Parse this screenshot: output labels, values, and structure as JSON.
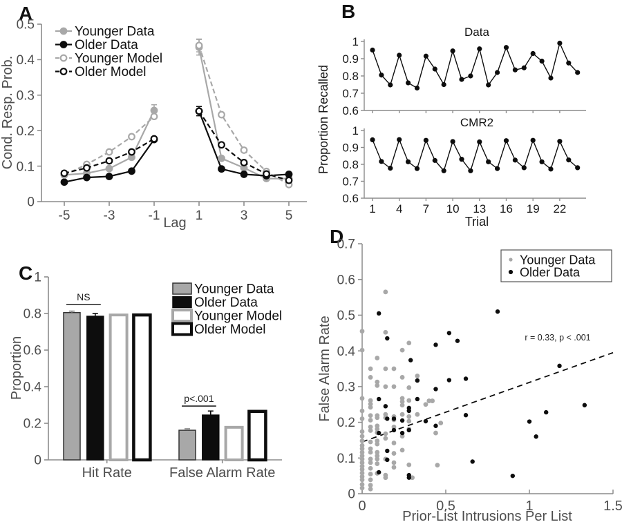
{
  "figure": {
    "panels": [
      {
        "label": "A"
      },
      {
        "label": "B"
      },
      {
        "label": "C"
      },
      {
        "label": "D"
      }
    ]
  },
  "colors": {
    "younger_gray": "#a8a8a8",
    "older_black": "#0d0d0d",
    "axis_gray": "#8c8c8c",
    "background": "#ffffff"
  },
  "chart_data": [
    {
      "panel": "A",
      "type": "line",
      "xlabel": "Lag",
      "ylabel": "Cond. Resp. Prob.",
      "x": [
        -5,
        -4,
        -3,
        -2,
        -1,
        1,
        2,
        3,
        4,
        5
      ],
      "xticks": [
        -5,
        -3,
        -1,
        1,
        3,
        5
      ],
      "ylim": [
        0,
        0.5
      ],
      "yticks": [
        0,
        0.1,
        0.2,
        0.3,
        0.4,
        0.5
      ],
      "axis_color": "#8c8c8c",
      "tick_color": "#4d4d4d",
      "legend_position": "top-left",
      "series": [
        {
          "name": "Younger Data",
          "color": "#a8a8a8",
          "dash": "solid",
          "marker": "filled",
          "values": [
            0.075,
            0.08,
            0.093,
            0.125,
            0.257,
            0.435,
            0.122,
            0.095,
            0.065,
            0.065
          ],
          "errors": [
            0,
            0,
            0,
            0,
            0.016,
            0.022,
            0,
            0,
            0,
            0
          ]
        },
        {
          "name": "Older Data",
          "color": "#0d0d0d",
          "dash": "solid",
          "marker": "filled",
          "values": [
            0.055,
            0.068,
            0.071,
            0.086,
            0.175,
            0.255,
            0.092,
            0.077,
            0.073,
            0.077
          ],
          "errors": [
            0,
            0,
            0,
            0,
            0,
            0.013,
            0,
            0,
            0,
            0
          ]
        },
        {
          "name": "Younger Model",
          "color": "#a8a8a8",
          "dash": "dashed",
          "marker": "open",
          "values": [
            0.075,
            0.105,
            0.14,
            0.183,
            0.24,
            0.44,
            0.245,
            0.145,
            0.085,
            0.048
          ],
          "errors": [
            0,
            0,
            0,
            0,
            0,
            0.018,
            0,
            0,
            0,
            0
          ]
        },
        {
          "name": "Older Model",
          "color": "#0d0d0d",
          "dash": "dashed",
          "marker": "open",
          "values": [
            0.08,
            0.095,
            0.115,
            0.14,
            0.177,
            0.255,
            0.16,
            0.11,
            0.078,
            0.06
          ],
          "errors": [
            0,
            0,
            0,
            0,
            0,
            0,
            0,
            0,
            0,
            0
          ]
        }
      ]
    },
    {
      "panel": "B",
      "type": "line",
      "xlabel": "Trial",
      "ylabel": "Proportion Recalled",
      "xticks": [
        1,
        4,
        7,
        10,
        13,
        16,
        19,
        22
      ],
      "ylim": [
        0.6,
        1
      ],
      "yticks": [
        0.6,
        0.7,
        0.8,
        0.9,
        1
      ],
      "axis_color": "#8c8c8c",
      "tick_color": "#1a1a1a",
      "series_color": "#0d0d0d",
      "subplots": [
        {
          "title": "Data",
          "values": [
            0.95,
            0.805,
            0.748,
            0.92,
            0.76,
            0.73,
            0.915,
            0.84,
            0.75,
            0.945,
            0.78,
            0.8,
            0.957,
            0.748,
            0.82,
            0.965,
            0.835,
            0.847,
            0.93,
            0.886,
            0.788,
            0.99,
            0.875,
            0.82
          ]
        },
        {
          "title": "CMR2",
          "values": [
            0.945,
            0.817,
            0.777,
            0.946,
            0.815,
            0.775,
            0.942,
            0.823,
            0.762,
            0.935,
            0.83,
            0.762,
            0.933,
            0.815,
            0.775,
            0.94,
            0.825,
            0.78,
            0.942,
            0.815,
            0.772,
            0.936,
            0.826,
            0.78
          ]
        }
      ]
    },
    {
      "panel": "C",
      "type": "bar",
      "ylabel": "Proportion",
      "categories": [
        "Hit Rate",
        "False Alarm Rate"
      ],
      "ylim": [
        0,
        1
      ],
      "yticks": [
        0,
        0.2,
        0.4,
        0.6,
        0.8,
        1
      ],
      "axis_color": "#8c8c8c",
      "tick_color": "#4d4d4d",
      "series": [
        {
          "name": "Younger Data",
          "fill": "#a8a8a8",
          "edge": "#333333",
          "edge_width": 1.5,
          "err_color": "#8a8a8a",
          "values": [
            0.805,
            0.162
          ],
          "errors": [
            0.008,
            0.008
          ]
        },
        {
          "name": "Older Data",
          "fill": "#0d0d0d",
          "edge": "#0d0d0d",
          "edge_width": 1.5,
          "err_color": "#0d0d0d",
          "values": [
            0.785,
            0.245
          ],
          "errors": [
            0.015,
            0.022
          ]
        },
        {
          "name": "Younger Model",
          "fill": "#ffffff",
          "edge": "#a8a8a8",
          "edge_width": 4,
          "err_color": "#8a8a8a",
          "values": [
            0.792,
            0.178
          ],
          "errors": [
            0,
            0
          ]
        },
        {
          "name": "Older Model",
          "fill": "#ffffff",
          "edge": "#0d0d0d",
          "edge_width": 4.5,
          "err_color": "#0d0d0d",
          "values": [
            0.792,
            0.265
          ],
          "errors": [
            0,
            0
          ]
        }
      ],
      "annotations": [
        {
          "text": "NS",
          "category": 0,
          "y": 0.85
        },
        {
          "text": "p<.001",
          "category": 1,
          "y": 0.294
        }
      ]
    },
    {
      "panel": "D",
      "type": "scatter",
      "xlabel": "Prior-List Intrusions Per List",
      "ylabel": "False Alarm Rate",
      "xlim": [
        0,
        1.5
      ],
      "xticks": [
        0,
        0.5,
        1,
        1.5
      ],
      "ylim": [
        0,
        0.7
      ],
      "yticks": [
        0,
        0.1,
        0.2,
        0.3,
        0.4,
        0.5,
        0.6,
        0.7
      ],
      "axis_color": "#8c8c8c",
      "tick_color": "#4d4d4d",
      "annotation": {
        "text": "r = 0.33, p < .001"
      },
      "regression": {
        "x": [
          0,
          1.5
        ],
        "y": [
          0.145,
          0.395
        ],
        "style": "dashed",
        "color": "#0d0d0d"
      },
      "series": [
        {
          "name": "Younger Data",
          "color": "#a8a8a8",
          "marker_size": 3.4,
          "points": [
            [
              0,
              0.455
            ],
            [
              0,
              0.402
            ],
            [
              0,
              0.267
            ],
            [
              0,
              0.232
            ],
            [
              0,
              0.21
            ],
            [
              0,
              0.174
            ],
            [
              0,
              0.161
            ],
            [
              0,
              0.148
            ],
            [
              0,
              0.135
            ],
            [
              0,
              0.126
            ],
            [
              0,
              0.116
            ],
            [
              0,
              0.106
            ],
            [
              0,
              0.097
            ],
            [
              0,
              0.087
            ],
            [
              0,
              0.077
            ],
            [
              0,
              0.068
            ],
            [
              0,
              0.058
            ],
            [
              0,
              0.048
            ],
            [
              0,
              0.039
            ],
            [
              0,
              0.026
            ],
            [
              0,
              0.016
            ],
            [
              0.05,
              0.35
            ],
            [
              0.05,
              0.326
            ],
            [
              0.05,
              0.261
            ],
            [
              0.05,
              0.251
            ],
            [
              0.05,
              0.242
            ],
            [
              0.05,
              0.219
            ],
            [
              0.05,
              0.206
            ],
            [
              0.05,
              0.187
            ],
            [
              0.05,
              0.177
            ],
            [
              0.05,
              0.145
            ],
            [
              0.05,
              0.126
            ],
            [
              0.05,
              0.116
            ],
            [
              0.05,
              0.097
            ],
            [
              0.05,
              0.087
            ],
            [
              0.05,
              0.071
            ],
            [
              0.05,
              0.055
            ],
            [
              0.05,
              0.039
            ],
            [
              0.05,
              0.024
            ],
            [
              0.05,
              0.013
            ],
            [
              0.09,
              0.38
            ],
            [
              0.09,
              0.313
            ],
            [
              0.09,
              0.303
            ],
            [
              0.09,
              0.219
            ],
            [
              0.09,
              0.213
            ],
            [
              0.09,
              0.19
            ],
            [
              0.09,
              0.181
            ],
            [
              0.09,
              0.171
            ],
            [
              0.09,
              0.148
            ],
            [
              0.09,
              0.139
            ],
            [
              0.09,
              0.116
            ],
            [
              0.09,
              0.106
            ],
            [
              0.09,
              0.097
            ],
            [
              0.09,
              0.084
            ],
            [
              0.09,
              0.057
            ],
            [
              0.14,
              0.565
            ],
            [
              0.14,
              0.452
            ],
            [
              0.14,
              0.35
            ],
            [
              0.14,
              0.3
            ],
            [
              0.14,
              0.222
            ],
            [
              0.14,
              0.213
            ],
            [
              0.14,
              0.168
            ],
            [
              0.14,
              0.155
            ],
            [
              0.14,
              0.097
            ],
            [
              0.14,
              0.052
            ],
            [
              0.14,
              0.045
            ],
            [
              0.19,
              0.35
            ],
            [
              0.19,
              0.3
            ],
            [
              0.19,
              0.216
            ],
            [
              0.19,
              0.207
            ],
            [
              0.19,
              0.187
            ],
            [
              0.19,
              0.142
            ],
            [
              0.19,
              0.113
            ],
            [
              0.19,
              0.087
            ],
            [
              0.19,
              0.074
            ],
            [
              0.24,
              0.402
            ],
            [
              0.24,
              0.326
            ],
            [
              0.24,
              0.267
            ],
            [
              0.24,
              0.258
            ],
            [
              0.24,
              0.248
            ],
            [
              0.24,
              0.222
            ],
            [
              0.24,
              0.161
            ],
            [
              0.24,
              0.122
            ],
            [
              0.28,
              0.422
            ],
            [
              0.28,
              0.297
            ],
            [
              0.28,
              0.261
            ],
            [
              0.28,
              0.216
            ],
            [
              0.28,
              0.203
            ],
            [
              0.28,
              0.181
            ],
            [
              0.28,
              0.081
            ],
            [
              0.33,
              0.33
            ],
            [
              0.33,
              0.222
            ],
            [
              0.38,
              0.25
            ],
            [
              0.4,
              0.26
            ],
            [
              0.42,
              0.26
            ],
            [
              0.44,
              0.17
            ],
            [
              0.45,
              0.08
            ],
            [
              0.47,
              0.198
            ],
            [
              0.3,
              0.045
            ]
          ]
        },
        {
          "name": "Older Data",
          "color": "#0d0d0d",
          "marker_size": 3.2,
          "points": [
            [
              0.1,
              0.505
            ],
            [
              0.15,
              0.435
            ],
            [
              0.52,
              0.45
            ],
            [
              0.57,
              0.428
            ],
            [
              0.44,
              0.417
            ],
            [
              0.81,
              0.51
            ],
            [
              0.29,
              0.374
            ],
            [
              0.33,
              0.317
            ],
            [
              0.52,
              0.318
            ],
            [
              0.62,
              0.322
            ],
            [
              0.44,
              0.293
            ],
            [
              1.18,
              0.358
            ],
            [
              0.1,
              0.265
            ],
            [
              0.14,
              0.245
            ],
            [
              0.28,
              0.24
            ],
            [
              0.28,
              0.232
            ],
            [
              0.33,
              0.265
            ],
            [
              0.15,
              0.21
            ],
            [
              0.19,
              0.21
            ],
            [
              0.24,
              0.205
            ],
            [
              0.38,
              0.203
            ],
            [
              0.44,
              0.19
            ],
            [
              0.62,
              0.22
            ],
            [
              1.1,
              0.228
            ],
            [
              1.33,
              0.248
            ],
            [
              1.0,
              0.202
            ],
            [
              0.1,
              0.17
            ],
            [
              0.19,
              0.178
            ],
            [
              0.24,
              0.17
            ],
            [
              0.28,
              0.178
            ],
            [
              1.04,
              0.16
            ],
            [
              0.15,
              0.12
            ],
            [
              0.15,
              0.095
            ],
            [
              0.1,
              0.06
            ],
            [
              0.28,
              0.052
            ],
            [
              0.28,
              0.045
            ],
            [
              0.66,
              0.09
            ],
            [
              0.9,
              0.05
            ]
          ]
        }
      ]
    }
  ]
}
